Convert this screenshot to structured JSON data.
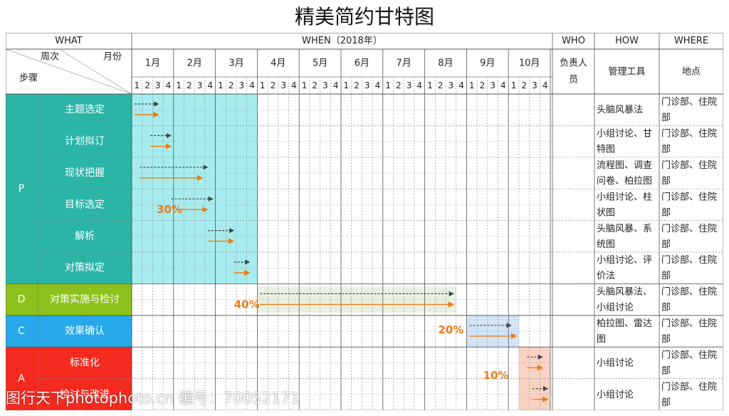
{
  "title": "精美简约甘特图",
  "table": {
    "what_header": "WHAT",
    "when_header": "WHEN（2018年）",
    "who_header": "WHO",
    "how_header": "HOW",
    "where_header": "WHERE",
    "corner": {
      "week_label": "周次",
      "month_label": "月份",
      "step_label": "步骤"
    },
    "who_subheader": "负责人员",
    "how_subheader": "管理工具",
    "where_subheader": "地点",
    "months": [
      "1月",
      "2月",
      "3月",
      "4月",
      "5月",
      "6月",
      "7月",
      "8月",
      "9月",
      "10月"
    ],
    "weeks": [
      "1",
      "2",
      "3",
      "4"
    ],
    "phases": [
      {
        "label": "P",
        "color": "#2bb5a7",
        "rows": 6
      },
      {
        "label": "D",
        "color": "#8cc21b",
        "rows": 1
      },
      {
        "label": "C",
        "color": "#27a8ea",
        "rows": 1
      },
      {
        "label": "A",
        "color": "#f52a1f",
        "rows": 2
      }
    ],
    "tasks": [
      {
        "name": "主题选定",
        "tool": "头脑风暴法",
        "place": "门诊部、住院部"
      },
      {
        "name": "计划拟订",
        "tool": "小组讨论、甘特图",
        "place": "门诊部、住院部"
      },
      {
        "name": "现状把握",
        "tool": "流程图、调查问卷、柏拉图",
        "place": "门诊部、住院部"
      },
      {
        "name": "目标选定",
        "tool": "小组讨论、柱状图",
        "place": "门诊部、住院部"
      },
      {
        "name": "解析",
        "tool": "头脑风暴、系统图",
        "place": "门诊部、住院部"
      },
      {
        "name": "对策拟定",
        "tool": "小组讨论、评价法",
        "place": "门诊部、住院部"
      },
      {
        "name": "对策实施与检讨",
        "tool": "头脑风暴法、小组讨论",
        "place": "门诊部、住院部"
      },
      {
        "name": "效果确认",
        "tool": "柏拉图、雷达图",
        "place": "门诊部、住院部"
      },
      {
        "name": "标准化",
        "tool": "小组讨论",
        "place": "门诊部、住院部"
      },
      {
        "name": "检讨与改进",
        "tool": "小组讨论",
        "place": "门诊部、住院部"
      }
    ]
  },
  "chart_data": {
    "type": "gantt",
    "time_unit": "week",
    "year": "2018",
    "phase_blocks": [
      {
        "phase": "P",
        "start_week": 1,
        "end_week": 12,
        "color": "#a6ecee",
        "percent": "30%"
      },
      {
        "phase": "D",
        "start_week": 13,
        "end_week": 31,
        "color": "#e8f1e2",
        "percent": "40%"
      },
      {
        "phase": "C",
        "start_week": 33,
        "end_week": 37,
        "color": "#d3e4f7",
        "percent": "20%"
      },
      {
        "phase": "A",
        "start_week": 38,
        "end_week": 40,
        "color": "#f9d2c4",
        "percent": "10%"
      }
    ],
    "percent_color": "#e87d1e",
    "plan_color": "#444444",
    "actual_color": "#f07c10",
    "tasks": [
      {
        "task": "主题选定",
        "plan": [
          1,
          2.8
        ],
        "actual": [
          1,
          2.8
        ]
      },
      {
        "task": "计划拟订",
        "plan": [
          2.5,
          4
        ],
        "actual": [
          2.5,
          4
        ]
      },
      {
        "task": "现状把握",
        "plan": [
          1.5,
          7.5
        ],
        "actual": [
          1.5,
          7
        ]
      },
      {
        "task": "目标选定",
        "plan": [
          4.5,
          8
        ],
        "actual": [
          5,
          7.5
        ]
      },
      {
        "task": "解析",
        "plan": [
          8,
          10
        ],
        "actual": [
          8,
          10
        ]
      },
      {
        "task": "对策拟定",
        "plan": [
          10.5,
          11.5
        ],
        "actual": [
          10.5,
          11.5
        ]
      },
      {
        "task": "对策实施与检讨",
        "plan": [
          13,
          31
        ],
        "actual": [
          13,
          31
        ]
      },
      {
        "task": "效果确认",
        "plan": [
          33,
          36.5
        ],
        "actual": [
          33,
          37
        ]
      },
      {
        "task": "标准化",
        "plan": [
          38.5,
          39.5
        ],
        "actual": [
          38.5,
          39.5
        ]
      },
      {
        "task": "检讨与改进",
        "plan": [
          39,
          40
        ],
        "actual": [
          39,
          40
        ]
      }
    ]
  },
  "watermark": "图行天下photophoto.cn 编号：70052171"
}
